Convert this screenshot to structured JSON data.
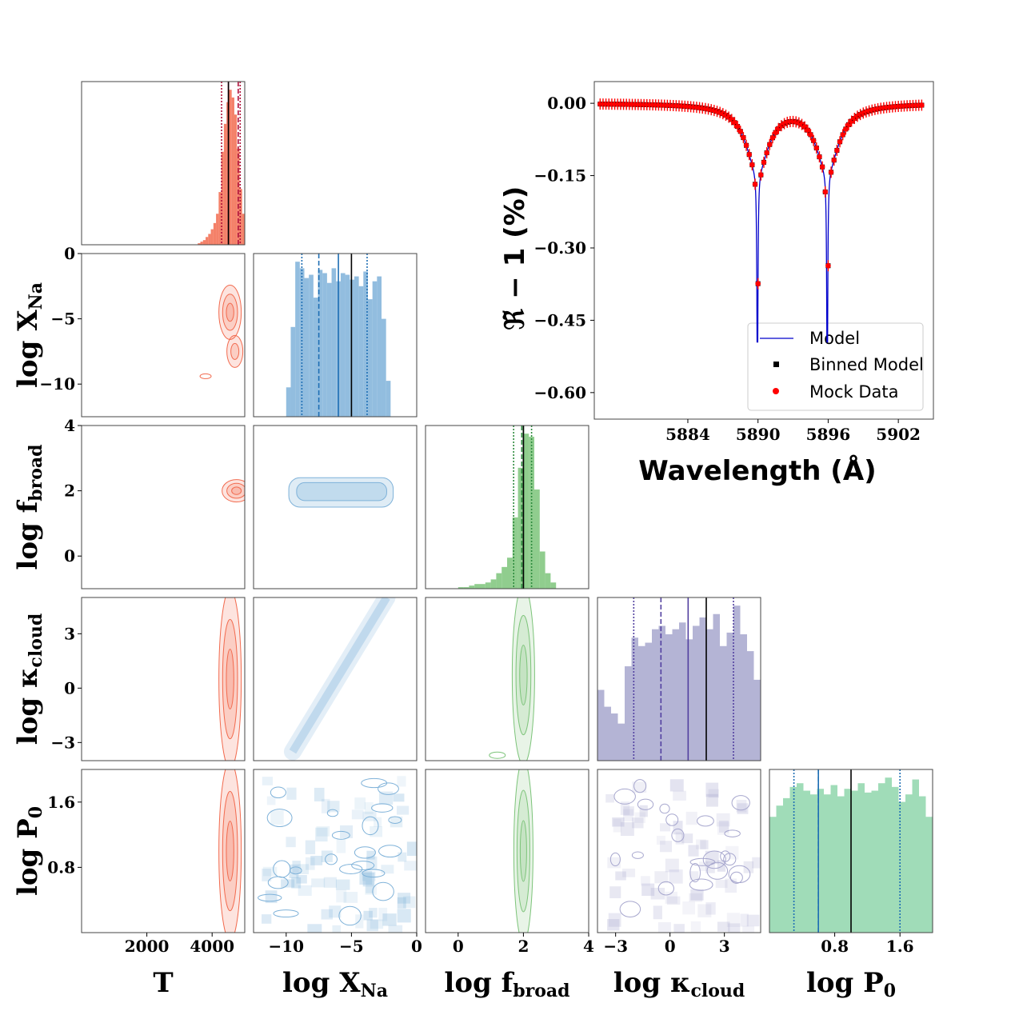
{
  "colors": {
    "T": "#f26b4f",
    "logXNa": "#7fb2d9",
    "logfbroad": "#7dc47a",
    "logkcloud": "#a7a7ce",
    "logP0": "#8fd6ac",
    "model": "#0000cc",
    "binned": "#000000",
    "mock": "#ff0000"
  },
  "corner": {
    "params": [
      {
        "key": "T",
        "label": "T",
        "sub": "",
        "lim": [
          0,
          5000
        ],
        "ticks": [
          2000,
          4000
        ],
        "tick_labels": [
          "2000",
          "4000"
        ]
      },
      {
        "key": "logXNa",
        "label": "log X",
        "sub": "Na",
        "lim": [
          -12.5,
          0
        ],
        "ticks": [
          -10,
          -5,
          0
        ],
        "tick_labels": [
          "−10",
          "−5",
          "0"
        ]
      },
      {
        "key": "logfbroad",
        "label": "log f",
        "sub": "broad",
        "lim": [
          -1,
          4
        ],
        "ticks": [
          0,
          2,
          4
        ],
        "tick_labels": [
          "0",
          "2",
          "4"
        ]
      },
      {
        "key": "logkcloud",
        "label": "log κ",
        "sub": "cloud",
        "lim": [
          -4,
          5
        ],
        "ticks": [
          -3,
          0,
          3
        ],
        "tick_labels": [
          "−3",
          "0",
          "3"
        ]
      },
      {
        "key": "logP0",
        "label": "log P",
        "sub": "0",
        "lim": [
          0,
          2
        ],
        "ticks": [
          0.8,
          1.6
        ],
        "tick_labels": [
          "0.8",
          "1.6"
        ]
      }
    ],
    "diag_hist": [
      {
        "key": "T",
        "bins_start": 3400,
        "bins_end": 5000,
        "values": [
          0,
          0,
          1,
          2,
          3,
          5,
          7,
          10,
          14,
          20,
          34,
          60,
          78,
          92,
          100,
          95,
          84,
          62,
          36,
          20
        ],
        "truth": 4500,
        "median": 4500,
        "dashed": 4800,
        "dotted": [
          4290,
          4860
        ]
      },
      {
        "key": "logXNa",
        "bins_start": -10,
        "bins_end": -2,
        "values": [
          18,
          55,
          95,
          91,
          85,
          87,
          73,
          90,
          88,
          82,
          91,
          83,
          88,
          87,
          84,
          86,
          80,
          89,
          72,
          83,
          86,
          60,
          22
        ],
        "truth": -5,
        "median": -6,
        "dashed": -7.5,
        "dotted": [
          -8.8,
          -3.8
        ]
      },
      {
        "key": "logfbroad",
        "bins_start": 0,
        "bins_end": 3,
        "values": [
          1,
          1,
          2,
          3,
          3,
          4,
          6,
          10,
          14,
          20,
          46,
          78,
          100,
          98,
          64,
          24,
          10,
          4
        ],
        "truth": 2,
        "median": 2,
        "dashed": 1.95,
        "dotted": [
          1.7,
          2.25
        ]
      },
      {
        "key": "logkcloud",
        "bins_start": -4,
        "bins_end": 5,
        "values": [
          42,
          32,
          28,
          22,
          56,
          73,
          68,
          70,
          78,
          80,
          75,
          78,
          82,
          72,
          80,
          85,
          78,
          87,
          68,
          76,
          92,
          75,
          65,
          48
        ],
        "truth": 2,
        "median": 1,
        "dashed": -0.5,
        "dotted": [
          -2,
          3.5
        ]
      },
      {
        "key": "logP0",
        "bins_start": 0,
        "bins_end": 2,
        "values": [
          62,
          68,
          72,
          78,
          80,
          76,
          74,
          77,
          74,
          79,
          73,
          77,
          76,
          80,
          75,
          76,
          80,
          83,
          78,
          70,
          74,
          82,
          73,
          62
        ],
        "truth": 1,
        "median": 0.6,
        "dashed": 0.6,
        "dotted": [
          0.3,
          1.6
        ]
      }
    ]
  },
  "spectrum": {
    "type": "line",
    "xlabel": "Wavelength (Å)",
    "ylabel": "ℜ̃ − 1 (%)",
    "xlim": [
      5876,
      5905
    ],
    "ylim": [
      -0.655,
      0.045
    ],
    "xticks": [
      5884,
      5890,
      5896,
      5902
    ],
    "xtick_labels": [
      "5884",
      "5890",
      "5896",
      "5902"
    ],
    "yticks": [
      0.0,
      -0.15,
      -0.3,
      -0.45,
      -0.6
    ],
    "ytick_labels": [
      "0.00",
      "−0.15",
      "−0.30",
      "−0.45",
      "−0.60"
    ],
    "lines": [
      5889.95,
      5895.92
    ],
    "depth": 0.495,
    "core_width": 0.05,
    "wing_width": 1.2,
    "wing_depth": 0.042,
    "x_start": 5876.5,
    "x_end": 5904,
    "legend": {
      "model": "Model",
      "binned": "Binned Model",
      "mock": "Mock Data"
    }
  }
}
